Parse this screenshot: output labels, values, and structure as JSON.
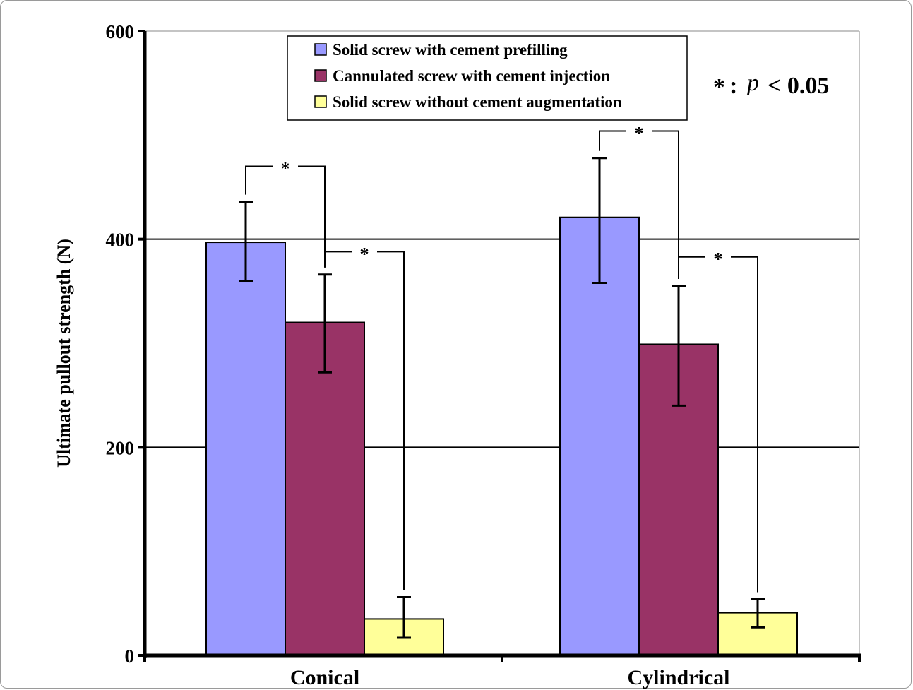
{
  "chart_data": {
    "type": "bar",
    "ylabel": "Ultimate pullout strength (N)",
    "xlabel": "",
    "categories": [
      "Conical",
      "Cylindrical"
    ],
    "ylim": [
      0,
      600
    ],
    "yticks": [
      0,
      200,
      400,
      600
    ],
    "grid": true,
    "legend_position": "top",
    "series": [
      {
        "name": "Solid screw with cement prefilling",
        "color": "#9999ff",
        "values": [
          397,
          421
        ],
        "error": [
          [
            360,
            436
          ],
          [
            358,
            478
          ]
        ]
      },
      {
        "name": "Cannulated screw with cement injection",
        "color": "#993366",
        "values": [
          320,
          299
        ],
        "error": [
          [
            272,
            366
          ],
          [
            240,
            355
          ]
        ]
      },
      {
        "name": "Solid screw without cement augmentation",
        "color": "#ffff99",
        "values": [
          35,
          41
        ],
        "error": [
          [
            17,
            56
          ],
          [
            27,
            54
          ]
        ]
      }
    ],
    "significance": [
      {
        "category": "Conical",
        "between": [
          0,
          1
        ],
        "label": "*",
        "y": 470
      },
      {
        "category": "Conical",
        "between": [
          1,
          2
        ],
        "label": "*",
        "y": 388
      },
      {
        "category": "Cylindrical",
        "between": [
          0,
          1
        ],
        "label": "*",
        "y": 504
      },
      {
        "category": "Cylindrical",
        "between": [
          1,
          2
        ],
        "label": "*",
        "y": 383
      }
    ],
    "annotation": {
      "star": "*",
      "colon": ":",
      "p": "p",
      "rest": "< 0.05"
    }
  }
}
